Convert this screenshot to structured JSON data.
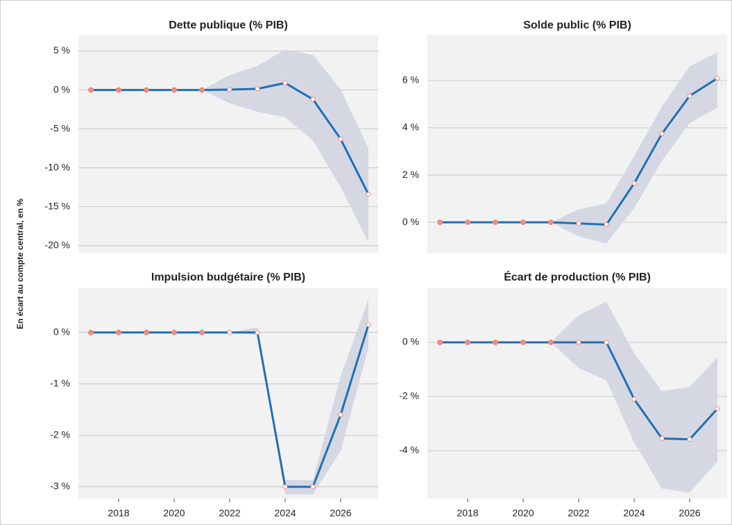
{
  "y_label": "En écart au compte central, en %",
  "chart_data": [
    {
      "type": "line",
      "title": "Dette publique (% PIB)",
      "x": [
        2017,
        2018,
        2019,
        2020,
        2021,
        2022,
        2023,
        2024,
        2025,
        2026,
        2027
      ],
      "values": [
        0,
        0,
        0,
        0,
        0,
        0.05,
        0.15,
        0.9,
        -1.2,
        -6.3,
        -13.4
      ],
      "upper": [
        0,
        0,
        0,
        0,
        0,
        1.9,
        3.1,
        5.2,
        4.5,
        0.1,
        -7.5
      ],
      "lower": [
        0,
        0,
        0,
        0,
        0,
        -1.7,
        -2.8,
        -3.5,
        -6.5,
        -12.5,
        -19.6
      ],
      "color": "#1f6fb5",
      "band_color": "#d5d8e3",
      "marker_color": "#ef8a80",
      "xlim": [
        2016.55,
        2027.35
      ],
      "ylim": [
        -21,
        7.1
      ],
      "yticks": [
        {
          "value": 5,
          "label": "5 %"
        },
        {
          "value": 0,
          "label": "0 %"
        },
        {
          "value": -5,
          "label": "-5 %"
        },
        {
          "value": -10,
          "label": "-10 %"
        },
        {
          "value": -15,
          "label": "-15 %"
        },
        {
          "value": -20,
          "label": "-20 %"
        }
      ],
      "grid": true
    },
    {
      "type": "line",
      "title": "Solde public (% PIB)",
      "x": [
        2017,
        2018,
        2019,
        2020,
        2021,
        2022,
        2023,
        2024,
        2025,
        2026,
        2027
      ],
      "values": [
        0,
        0,
        0,
        0,
        0,
        -0.05,
        -0.1,
        1.65,
        3.75,
        5.35,
        6.1
      ],
      "upper": [
        0,
        0,
        0,
        0,
        0,
        0.55,
        0.8,
        2.8,
        4.9,
        6.6,
        7.2
      ],
      "lower": [
        0,
        0,
        0,
        0,
        0,
        -0.6,
        -0.9,
        0.6,
        2.6,
        4.2,
        4.85
      ],
      "color": "#1f6fb5",
      "band_color": "#d5d8e3",
      "marker_color": "#ef8a80",
      "xlim": [
        2016.55,
        2027.35
      ],
      "ylim": [
        -1.32,
        7.94
      ],
      "yticks": [
        {
          "value": 0,
          "label": "0 %"
        },
        {
          "value": 2,
          "label": "2 %"
        },
        {
          "value": 4,
          "label": "4 %"
        },
        {
          "value": 6,
          "label": "6 %"
        }
      ],
      "grid": true
    },
    {
      "type": "line",
      "title": "Impulsion budgétaire (% PIB)",
      "x": [
        2017,
        2018,
        2019,
        2020,
        2021,
        2022,
        2023,
        2024,
        2025,
        2026,
        2027
      ],
      "values": [
        0,
        0,
        0,
        0,
        0,
        0,
        0,
        -3,
        -3,
        -1.6,
        0.15
      ],
      "upper": [
        0,
        0,
        0,
        0,
        0,
        0,
        0.1,
        -2.87,
        -2.87,
        -0.85,
        0.65
      ],
      "lower": [
        0,
        0,
        0,
        0,
        0,
        0,
        -0.05,
        -3.15,
        -3.15,
        -2.3,
        -0.3
      ],
      "color": "#1f6fb5",
      "band_color": "#d5d8e3",
      "marker_color": "#ef8a80",
      "xlim": [
        2016.55,
        2027.35
      ],
      "ylim": [
        -3.23,
        0.86
      ],
      "yticks": [
        {
          "value": 0,
          "label": "0 %"
        },
        {
          "value": -1,
          "label": "-1 %"
        },
        {
          "value": -2,
          "label": "-2 %"
        },
        {
          "value": -3,
          "label": "-3 %"
        }
      ],
      "xticks": [
        2018,
        2020,
        2022,
        2024,
        2026
      ],
      "grid": true
    },
    {
      "type": "line",
      "title": "Écart de production (% PIB)",
      "x": [
        2017,
        2018,
        2019,
        2020,
        2021,
        2022,
        2023,
        2024,
        2025,
        2026,
        2027
      ],
      "values": [
        0,
        0,
        0,
        0,
        0,
        0,
        0,
        -2.1,
        -3.55,
        -3.58,
        -2.45
      ],
      "upper": [
        0,
        0,
        0,
        0,
        0,
        1.0,
        1.5,
        -0.4,
        -1.8,
        -1.65,
        -0.55
      ],
      "lower": [
        0,
        0,
        0,
        0,
        0,
        -0.95,
        -1.4,
        -3.7,
        -5.4,
        -5.55,
        -4.4
      ],
      "color": "#1f6fb5",
      "band_color": "#d5d8e3",
      "marker_color": "#ef8a80",
      "xlim": [
        2016.55,
        2027.35
      ],
      "ylim": [
        -5.77,
        2.0
      ],
      "yticks": [
        {
          "value": 0,
          "label": "0 %"
        },
        {
          "value": -2,
          "label": "-2 %"
        },
        {
          "value": -4,
          "label": "-4 %"
        }
      ],
      "xticks": [
        2018,
        2020,
        2022,
        2024,
        2026
      ],
      "grid": true
    }
  ]
}
